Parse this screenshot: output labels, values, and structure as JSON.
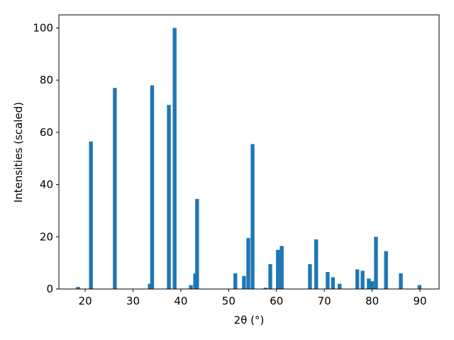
{
  "chart_data": {
    "type": "bar",
    "xlabel": "2θ (°)",
    "ylabel": "Intensities (scaled)",
    "x": [
      18.5,
      21.2,
      26.2,
      33.5,
      34.0,
      37.5,
      38.7,
      42.1,
      43.0,
      43.4,
      51.4,
      53.2,
      54.1,
      55.0,
      57.7,
      58.7,
      60.3,
      61.1,
      67.0,
      68.3,
      70.7,
      71.8,
      73.2,
      76.9,
      78.0,
      79.3,
      80.0,
      80.8,
      82.9,
      86.0,
      89.9
    ],
    "values": [
      0.8,
      56.5,
      77,
      2,
      78,
      70.5,
      100,
      1.5,
      6,
      34.5,
      6,
      5,
      19.5,
      55.5,
      0.5,
      9.5,
      15,
      16.5,
      9.5,
      19,
      6.5,
      4.5,
      2,
      7.5,
      7,
      4,
      3,
      20,
      14.5,
      6,
      1.5
    ],
    "color": "#1f77b4",
    "xlim": [
      14.5,
      94
    ],
    "ylim": [
      0,
      105
    ],
    "xticks": [
      20,
      30,
      40,
      50,
      60,
      70,
      80,
      90
    ],
    "yticks": [
      0,
      20,
      40,
      60,
      80,
      100
    ]
  }
}
